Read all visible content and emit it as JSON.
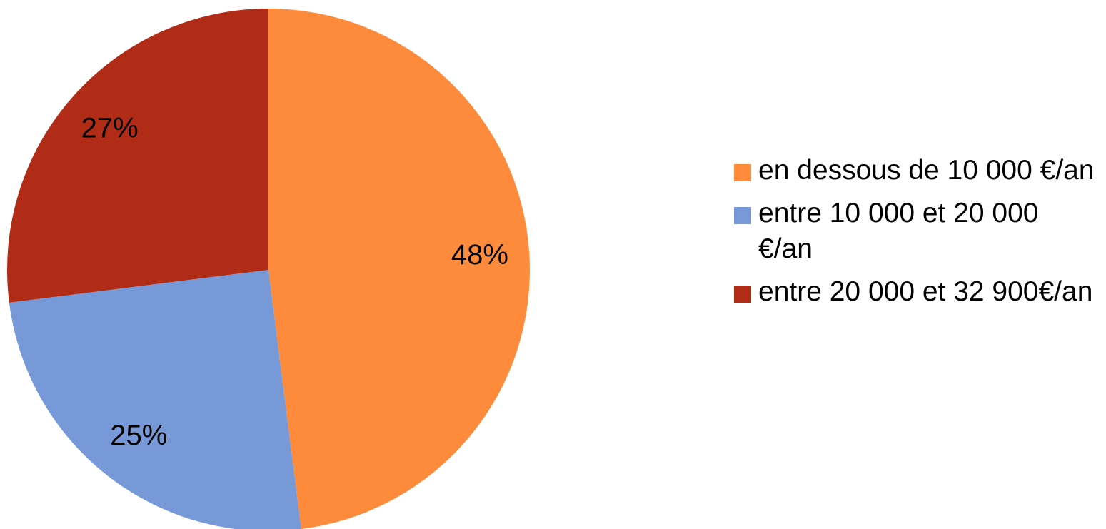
{
  "chart_data": {
    "type": "pie",
    "categories": [
      "en dessous de 10 000 €/an",
      "entre 10 000 et 20 000 €/an",
      "entre 20 000 et 32 900€/an"
    ],
    "values": [
      48,
      25,
      27
    ],
    "value_labels": [
      "48%",
      "25%",
      "27%"
    ],
    "colors": [
      "#fd8b3b",
      "#7799d7",
      "#b02c17"
    ],
    "legend": "right"
  }
}
